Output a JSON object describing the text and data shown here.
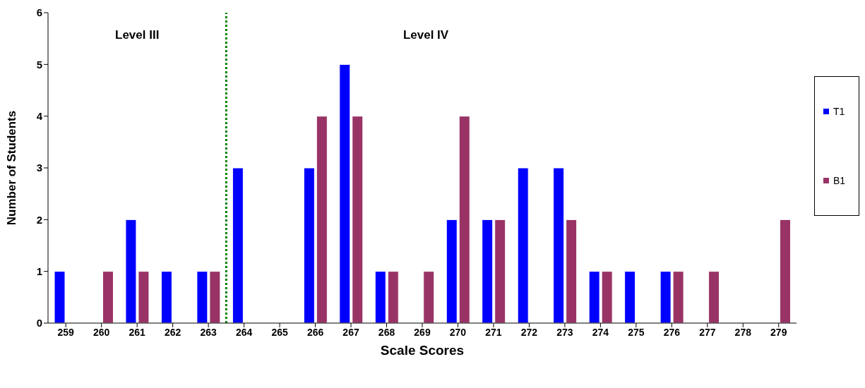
{
  "chart_data": {
    "type": "bar",
    "x": [
      259,
      260,
      261,
      262,
      263,
      264,
      265,
      266,
      267,
      268,
      269,
      270,
      271,
      272,
      273,
      274,
      275,
      276,
      277,
      278,
      279
    ],
    "series": [
      {
        "name": "T1",
        "color": "#0000ff",
        "values": [
          1,
          0,
          2,
          1,
          1,
          3,
          0,
          3,
          5,
          1,
          0,
          2,
          2,
          3,
          3,
          1,
          1,
          1,
          0,
          0,
          0
        ]
      },
      {
        "name": "B1",
        "color": "#993366",
        "values": [
          0,
          1,
          1,
          0,
          1,
          0,
          0,
          4,
          4,
          1,
          1,
          4,
          2,
          0,
          2,
          1,
          0,
          1,
          1,
          0,
          2
        ]
      }
    ],
    "xlabel": "Scale Scores",
    "ylabel": "Number of Students",
    "xlim": [
      258.5,
      279.5
    ],
    "xticks": [
      259,
      260,
      261,
      262,
      263,
      264,
      265,
      266,
      267,
      268,
      269,
      270,
      271,
      272,
      273,
      274,
      275,
      276,
      277,
      278,
      279
    ],
    "ylim": [
      0,
      6
    ],
    "yticks": [
      0,
      1,
      2,
      3,
      4,
      5,
      6
    ],
    "ref_lines": [
      {
        "axis": "x",
        "value": 263.5,
        "color": "#008000",
        "line_style": "dotted"
      }
    ],
    "annotations": [
      "Level III",
      "Level IV"
    ],
    "grid": false,
    "legend": "right"
  }
}
